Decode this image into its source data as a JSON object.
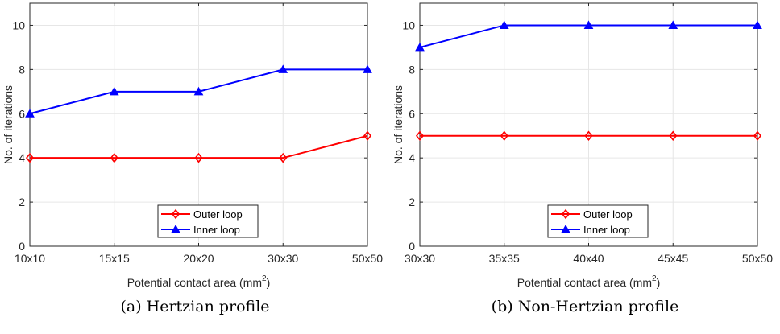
{
  "chart_data": [
    {
      "type": "line",
      "categories": [
        "10x10",
        "15x15",
        "20x20",
        "30x30",
        "50x50"
      ],
      "series": [
        {
          "name": "Outer loop",
          "values": [
            4,
            4,
            4,
            4,
            5
          ],
          "color": "#ff0000",
          "marker": "diamond"
        },
        {
          "name": "Inner loop",
          "values": [
            6,
            7,
            7,
            8,
            8
          ],
          "color": "#0000ff",
          "marker": "triangle"
        }
      ],
      "xlabel_main": "Potential contact area (mm",
      "xlabel_sup": "2",
      "xlabel_end": ")",
      "ylabel": "No. of iterations",
      "ylim": [
        0,
        11
      ],
      "yticks": [
        0,
        2,
        4,
        6,
        8,
        10
      ],
      "grid": true,
      "legend_position": "bottom-center",
      "caption": "(a) Hertzian profile"
    },
    {
      "type": "line",
      "categories": [
        "30x30",
        "35x35",
        "40x40",
        "45x45",
        "50x50"
      ],
      "series": [
        {
          "name": "Outer loop",
          "values": [
            5,
            5,
            5,
            5,
            5
          ],
          "color": "#ff0000",
          "marker": "diamond"
        },
        {
          "name": "Inner loop",
          "values": [
            9,
            10,
            10,
            10,
            10
          ],
          "color": "#0000ff",
          "marker": "triangle"
        }
      ],
      "xlabel_main": "Potential contact area (mm",
      "xlabel_sup": "2",
      "xlabel_end": ")",
      "ylabel": "No. of iterations",
      "ylim": [
        0,
        11
      ],
      "yticks": [
        0,
        2,
        4,
        6,
        8,
        10
      ],
      "grid": true,
      "legend_position": "bottom-center",
      "caption": "(b) Non-Hertzian profile"
    }
  ]
}
